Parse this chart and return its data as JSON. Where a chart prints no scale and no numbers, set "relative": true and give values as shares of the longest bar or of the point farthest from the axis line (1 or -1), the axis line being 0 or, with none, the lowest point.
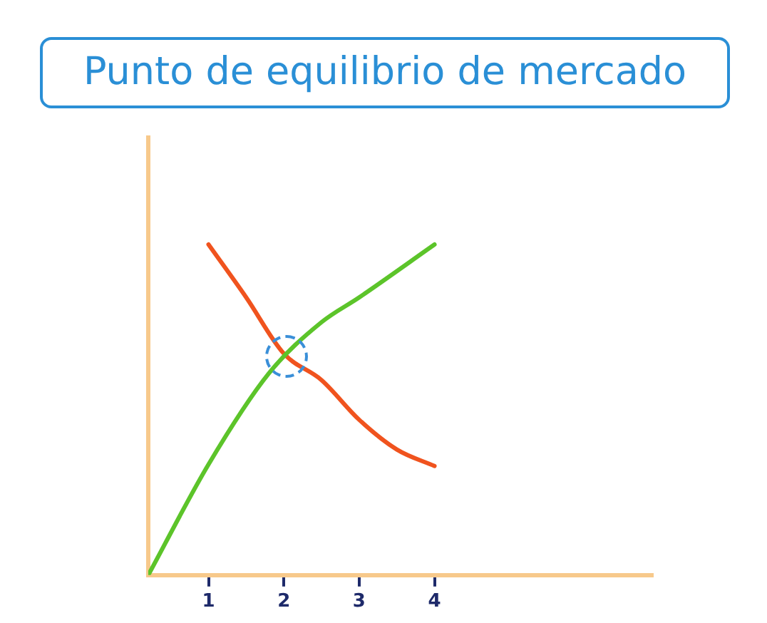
{
  "chart_data": {
    "type": "line",
    "title": "Punto de equilibrio de mercado",
    "relative": true,
    "xlim": [
      0.2,
      6.9
    ],
    "xticks": [
      1,
      2,
      3,
      4
    ],
    "grid": false,
    "legend": false,
    "marker": "none",
    "line_style": "solid",
    "series": [
      {
        "color": "#5cc42a",
        "x": [
          0.2,
          1,
          1.8,
          2.5,
          3,
          4
        ],
        "values": [
          0,
          0.335,
          0.61,
          0.765,
          0.84,
          1
        ]
      },
      {
        "color": "#f0531e",
        "x": [
          1,
          1.5,
          2,
          2.5,
          3,
          3.5,
          4
        ],
        "values": [
          1,
          0.84,
          0.67,
          0.59,
          0.47,
          0.38,
          0.33
        ]
      }
    ]
  }
}
